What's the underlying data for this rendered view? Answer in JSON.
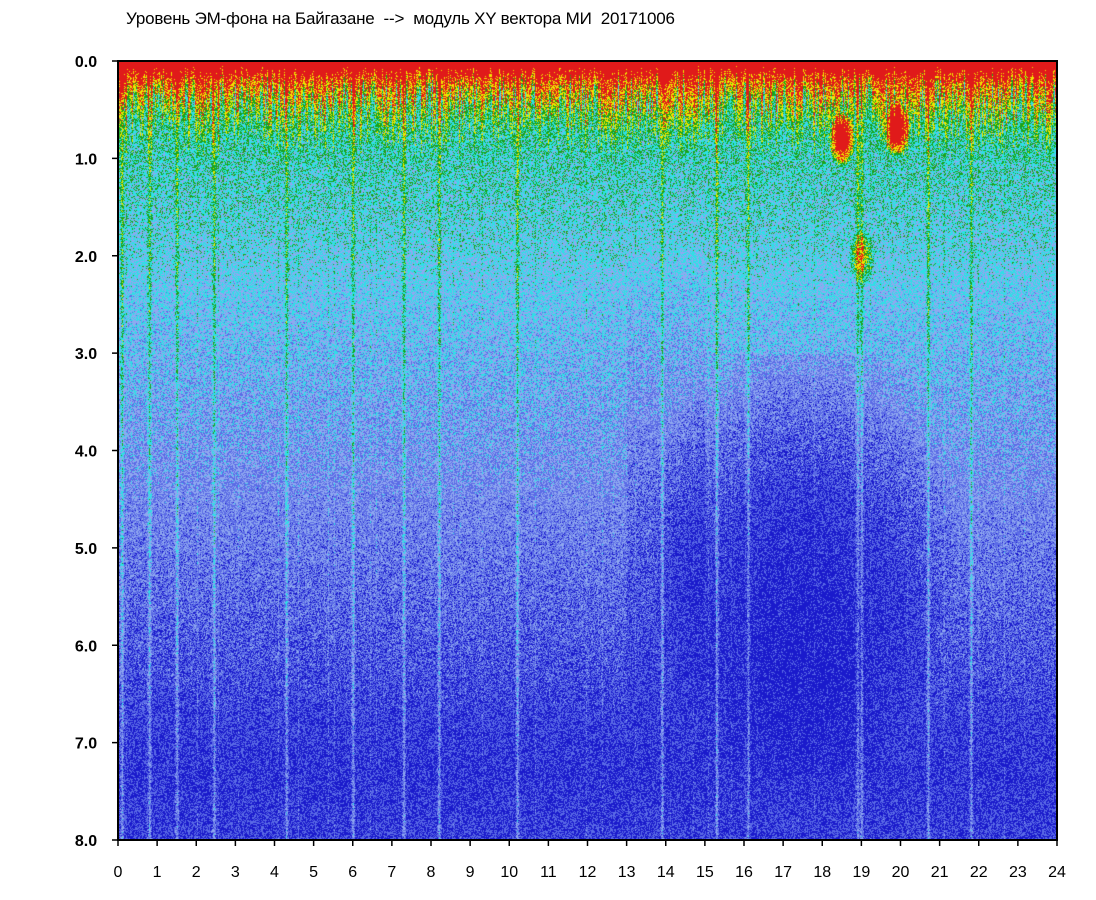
{
  "chart_data": {
    "type": "heatmap",
    "title": "Уровень ЭМ-фона на Байгазане  -->  модуль XY вектора МИ  20171006",
    "xlabel": "",
    "ylabel": "",
    "xlim": [
      0,
      24
    ],
    "ylim": [
      8.0,
      0.0
    ],
    "y_axis_inverted": true,
    "x_ticks": [
      "0",
      "1",
      "2",
      "3",
      "4",
      "5",
      "6",
      "7",
      "8",
      "9",
      "10",
      "11",
      "12",
      "13",
      "14",
      "15",
      "16",
      "17",
      "18",
      "19",
      "20",
      "21",
      "22",
      "23",
      "24"
    ],
    "y_ticks": [
      "0.0",
      "1.0",
      "2.0",
      "3.0",
      "4.0",
      "5.0",
      "6.0",
      "7.0",
      "8.0"
    ],
    "colorscale": [
      "#1a1acc",
      "#5b6be6",
      "#8fa8f0",
      "#2ee0e6",
      "#1aa31a",
      "#f0e600",
      "#e01a1a",
      "#ffffff"
    ],
    "grid": false,
    "legend": "none",
    "description_of_intensity": {
      "high_intensity_band_y": [
        0.0,
        1.2
      ],
      "low_intensity_region_x": [
        13.5,
        21.5
      ],
      "low_intensity_region_y": [
        3.0,
        7.5
      ],
      "bright_streak_hours": [
        0.1,
        0.8,
        1.5,
        2.45,
        4.3,
        6.0,
        7.3,
        8.2,
        10.2,
        13.9,
        15.3,
        16.1,
        18.9,
        19.0,
        20.7,
        21.8
      ],
      "hot_spots": [
        {
          "x": 18.5,
          "y": 0.8,
          "value": "high"
        },
        {
          "x": 19.9,
          "y": 0.7,
          "value": "high"
        },
        {
          "x": 19.0,
          "y": 2.0,
          "value": "medium"
        }
      ]
    }
  }
}
